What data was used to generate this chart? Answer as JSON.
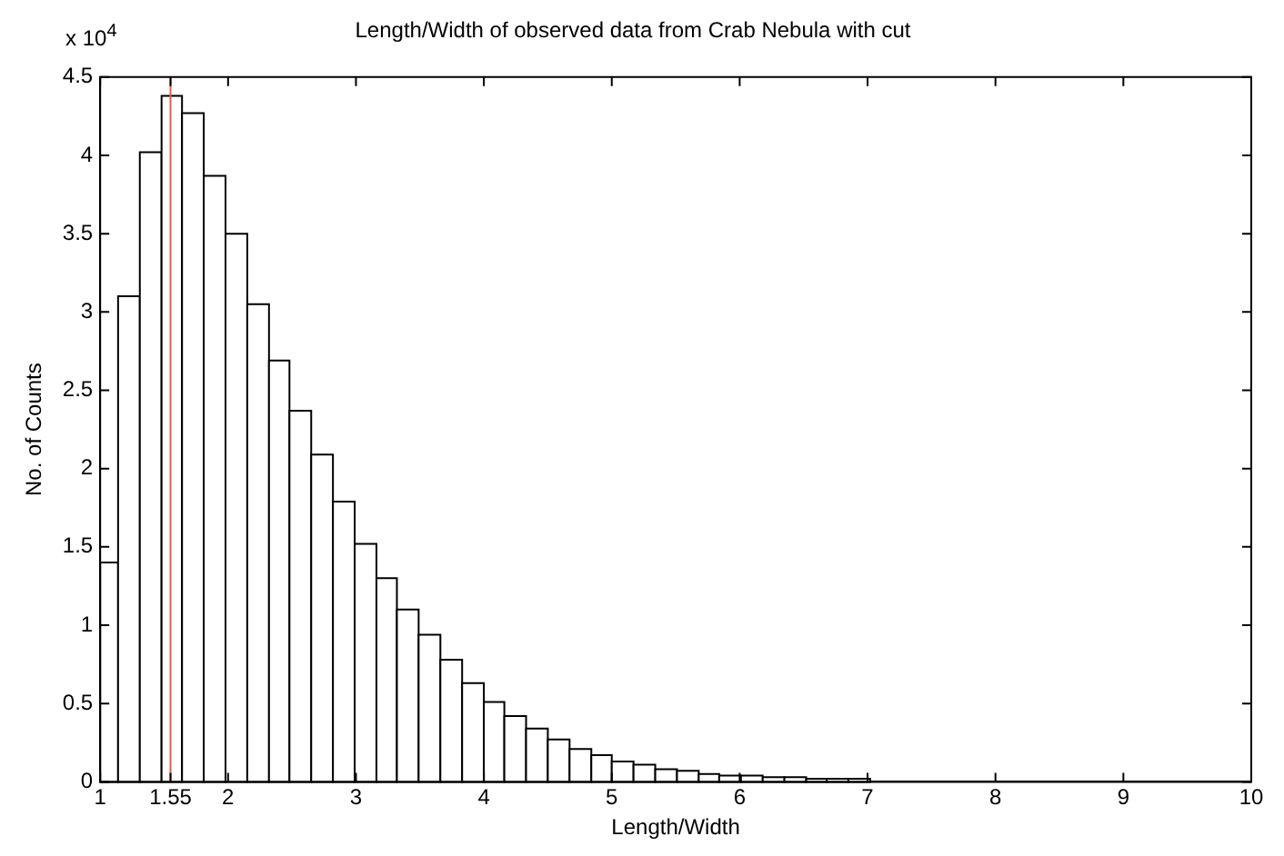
{
  "chart_data": {
    "type": "histogram",
    "title": "Length/Width of observed data from Crab Nebula with cut",
    "xlabel": "Length/Width",
    "ylabel": "No. of Counts",
    "bins": [
      1,
      1.14,
      1.31,
      1.48,
      1.64,
      1.81,
      1.98,
      2.15,
      2.32,
      2.48,
      2.65,
      2.82,
      2.99,
      3.16,
      3.32,
      3.49,
      3.66,
      3.83,
      4.0,
      4.16,
      4.33,
      4.5,
      4.67,
      4.84,
      5.0,
      5.17,
      5.34,
      5.51,
      5.68,
      5.84,
      6.01,
      6.18,
      6.35,
      6.52,
      6.68,
      6.85,
      7.02
    ],
    "values": [
      1.4,
      3.1,
      4.02,
      4.38,
      4.27,
      3.87,
      3.5,
      3.05,
      2.69,
      2.37,
      2.09,
      1.79,
      1.52,
      1.3,
      1.1,
      0.94,
      0.78,
      0.63,
      0.51,
      0.42,
      0.34,
      0.27,
      0.21,
      0.17,
      0.13,
      0.11,
      0.08,
      0.07,
      0.05,
      0.04,
      0.04,
      0.03,
      0.03,
      0.02,
      0.02,
      0.02
    ],
    "color": "#ffffff",
    "xlim": [
      1,
      10
    ],
    "xticks": [
      1,
      1.55,
      2,
      3,
      4,
      5,
      6,
      7,
      8,
      9,
      10
    ],
    "ylim": [
      0,
      4.5
    ],
    "yticks": [
      0,
      0.5,
      1,
      1.5,
      2,
      2.5,
      3,
      3.5,
      4,
      4.5
    ],
    "ref_lines": [
      {
        "axis": "x",
        "value": 1.55,
        "color": "#d9614f"
      }
    ],
    "annotations": [
      "x 10$^{4}$"
    ],
    "grid": false,
    "legend": false
  }
}
